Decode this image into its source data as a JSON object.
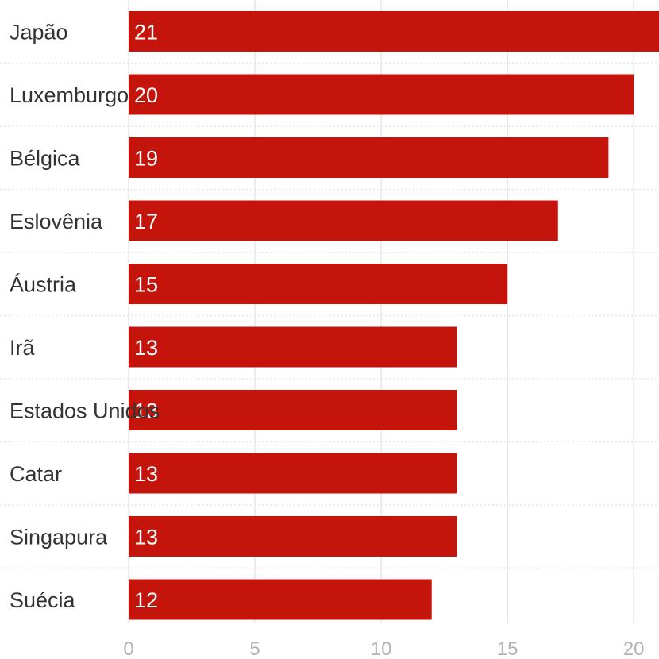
{
  "chart_data": {
    "type": "bar",
    "orientation": "horizontal",
    "categories": [
      "Japão",
      "Luxemburgo",
      "Bélgica",
      "Eslovênia",
      "Áustria",
      "Irã",
      "Estados Unidos",
      "Catar",
      "Singapura",
      "Suécia"
    ],
    "values": [
      21,
      20,
      19,
      17,
      15,
      13,
      13,
      13,
      13,
      12
    ],
    "x_ticks": [
      0,
      5,
      10,
      15,
      20
    ],
    "xlim": [
      0,
      21
    ],
    "grid": true,
    "colors": {
      "bar": "#c4140c",
      "bar_label": "#ffffff",
      "grid": "#e6e6e6",
      "tick": "#b3b3b3",
      "category": "#333333"
    }
  }
}
